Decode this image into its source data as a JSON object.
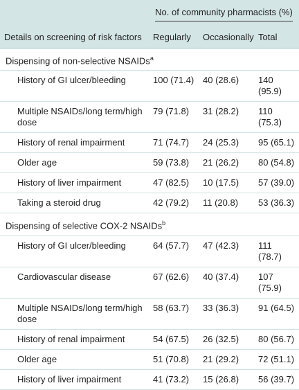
{
  "header": {
    "group": "No. of community pharmacists (%)",
    "columns": [
      "Details on screening of risk factors",
      "Regularly",
      "Occasionally",
      "Total"
    ]
  },
  "sections": [
    {
      "title": "Dispensing of non-selective NSAIDs",
      "note": "a",
      "rows": [
        [
          "History of GI ulcer/bleeding",
          "100 (71.4)",
          "40 (28.6)",
          "140 (95.9)"
        ],
        [
          "Multiple NSAIDs/long term/high dose",
          "79 (71.8)",
          "31 (28.2)",
          "110 (75.3)"
        ],
        [
          "History of renal impairment",
          "71 (74.7)",
          "24 (25.3)",
          "95 (65.1)"
        ],
        [
          "Older age",
          "59 (73.8)",
          "21 (26.2)",
          "80 (54.8)"
        ],
        [
          "History of liver impairment",
          "47 (82.5)",
          "10 (17.5)",
          "57 (39.0)"
        ],
        [
          "Taking a steroid drug",
          "42 (79.2)",
          "11 (20.8)",
          "53 (36.3)"
        ]
      ]
    },
    {
      "title": "Dispensing of selective COX-2 NSAIDs",
      "note": "b",
      "rows": [
        [
          "History of GI ulcer/bleeding",
          "64 (57.7)",
          "47 (42.3)",
          "111 (78.7)"
        ],
        [
          "Cardiovascular disease",
          "67 (62.6)",
          "40 (37.4)",
          "107 (75.9)"
        ],
        [
          "Multiple NSAIDs/long term/high dose",
          "58 (63.7)",
          "33 (36.3)",
          "91 (64.5)"
        ],
        [
          "History of renal impairment",
          "54 (67.5)",
          "26 (32.5)",
          "80 (56.7)"
        ],
        [
          "Older age",
          "51 (70.8)",
          "21 (29.2)",
          "72 (51.1)"
        ],
        [
          "History of liver impairment",
          "41 (73.2)",
          "15 (26.8)",
          "56 (39.7)"
        ]
      ]
    }
  ]
}
